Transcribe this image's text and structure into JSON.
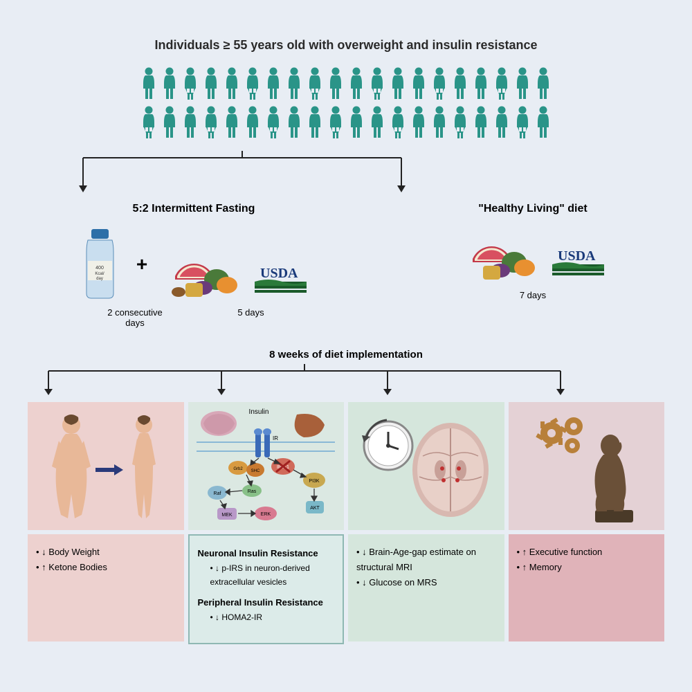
{
  "title": "Individuals ≥ 55 years old with overweight and insulin resistance",
  "people": {
    "rows": 2,
    "perRow": 20,
    "color": "#2a9488"
  },
  "diets": {
    "left": {
      "title": "5:2 Intermittent Fasting",
      "bottle_label": "400 Kcal/ day",
      "label1": "2 consecutive days",
      "label2": "5 days"
    },
    "right": {
      "title": "\"Healthy Living\" diet",
      "label": "7 days"
    },
    "usda_text": "USDA"
  },
  "weeks": "8 weeks of diet implementation",
  "outcomes": {
    "c1": {
      "items": [
        "↓ Body Weight",
        "↑ Ketone Bodies"
      ]
    },
    "c2": {
      "head1": "Neuronal Insulin Resistance",
      "item1": "↓ p-IRS in neuron-derived extracellular vesicles",
      "head2": "Peripheral Insulin Resistance",
      "item2": "↓ HOMA2-IR",
      "pathway_labels": [
        "Insulin",
        "IR",
        "IRS-1",
        "PI3K",
        "AKT",
        "Grb2",
        "SHC",
        "Ras",
        "Raf",
        "MEK",
        "ERK"
      ]
    },
    "c3": {
      "items": [
        "↓ Brain-Age-gap estimate on structural MRI",
        "↓ Glucose on MRS"
      ]
    },
    "c4": {
      "items": [
        "↑ Executive function",
        "↑ Memory"
      ]
    }
  },
  "colors": {
    "bg": "#e8edf4",
    "teal": "#2a9488",
    "arrow": "#222222",
    "panel1": "#edd1cf",
    "panel2": "#dbe8e2",
    "panel2b": "#dcebe9",
    "panel3": "#d5e6dc",
    "panel4": "#e4d1d5",
    "panel4b": "#e0b3b9"
  }
}
